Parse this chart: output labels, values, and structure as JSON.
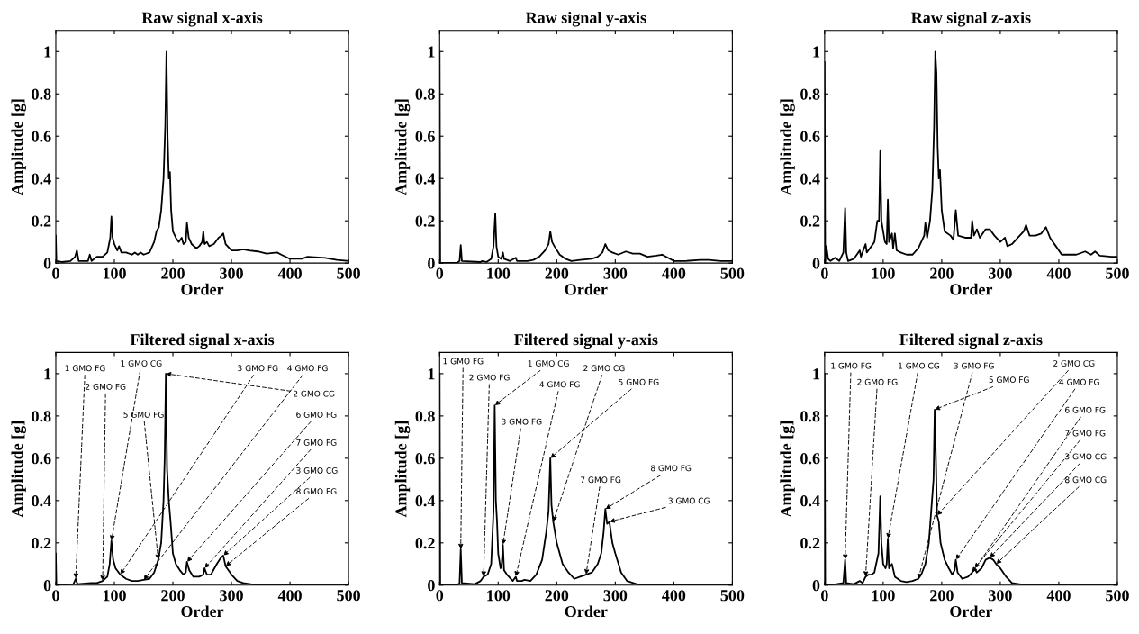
{
  "chart_data": [
    {
      "type": "line",
      "title": "Raw signal x-axis",
      "xlabel": "Order",
      "ylabel": "Amplitude [g]",
      "xlim": [
        0,
        500
      ],
      "ylim": [
        0,
        1.1
      ],
      "xticks": [
        0,
        100,
        200,
        300,
        400,
        500
      ],
      "yticks": [
        0,
        0.2,
        0.4,
        0.6,
        0.8,
        1
      ],
      "grid": false,
      "series": [
        {
          "color": "#000000",
          "x": [
            0,
            1,
            10,
            25,
            33,
            36,
            39,
            55,
            58,
            61,
            70,
            80,
            88,
            93,
            95,
            97,
            100,
            105,
            108,
            112,
            120,
            130,
            135,
            140,
            145,
            150,
            160,
            168,
            172,
            176,
            180,
            184,
            187,
            189,
            191,
            193,
            195,
            197,
            200,
            205,
            210,
            215,
            218,
            222,
            224,
            227,
            232,
            240,
            245,
            250,
            252,
            254,
            258,
            262,
            270,
            278,
            283,
            286,
            290,
            300,
            310,
            320,
            330,
            345,
            360,
            378,
            385,
            400,
            420,
            430,
            460,
            480,
            500
          ],
          "values": [
            0.13,
            0.01,
            0.005,
            0.01,
            0.03,
            0.06,
            0.01,
            0.01,
            0.04,
            0.01,
            0.03,
            0.03,
            0.05,
            0.12,
            0.22,
            0.12,
            0.09,
            0.06,
            0.08,
            0.05,
            0.05,
            0.04,
            0.05,
            0.04,
            0.05,
            0.04,
            0.05,
            0.1,
            0.15,
            0.17,
            0.25,
            0.4,
            0.65,
            1.0,
            0.6,
            0.4,
            0.43,
            0.25,
            0.15,
            0.12,
            0.1,
            0.12,
            0.09,
            0.1,
            0.19,
            0.12,
            0.09,
            0.07,
            0.08,
            0.1,
            0.15,
            0.09,
            0.1,
            0.08,
            0.09,
            0.12,
            0.13,
            0.14,
            0.09,
            0.06,
            0.06,
            0.065,
            0.06,
            0.055,
            0.045,
            0.05,
            0.04,
            0.02,
            0.02,
            0.03,
            0.025,
            0.015,
            0.01
          ]
        }
      ]
    },
    {
      "type": "line",
      "title": "Raw signal y-axis",
      "xlabel": "Order",
      "ylabel": "Amplitude [g]",
      "xlim": [
        0,
        500
      ],
      "ylim": [
        0,
        1.1
      ],
      "xticks": [
        0,
        100,
        200,
        300,
        400,
        500
      ],
      "yticks": [
        0,
        0.2,
        0.4,
        0.6,
        0.8,
        1
      ],
      "grid": false,
      "series": [
        {
          "color": "#000000",
          "x": [
            0,
            1,
            30,
            34,
            36,
            38,
            70,
            72,
            80,
            88,
            92,
            95,
            97,
            100,
            105,
            108,
            110,
            120,
            130,
            132,
            140,
            150,
            160,
            170,
            180,
            186,
            189,
            192,
            196,
            205,
            215,
            225,
            240,
            260,
            270,
            278,
            283,
            288,
            295,
            305,
            318,
            330,
            342,
            355,
            370,
            380,
            390,
            400,
            420,
            445,
            460,
            480,
            500
          ],
          "values": [
            1.0,
            0.0,
            0.002,
            0.01,
            0.085,
            0.01,
            0.005,
            0.01,
            0.005,
            0.02,
            0.08,
            0.235,
            0.08,
            0.03,
            0.02,
            0.05,
            0.02,
            0.01,
            0.025,
            0.01,
            0.01,
            0.01,
            0.015,
            0.03,
            0.06,
            0.09,
            0.15,
            0.1,
            0.08,
            0.04,
            0.02,
            0.01,
            0.015,
            0.02,
            0.03,
            0.05,
            0.09,
            0.06,
            0.05,
            0.04,
            0.055,
            0.045,
            0.045,
            0.03,
            0.035,
            0.04,
            0.025,
            0.01,
            0.01,
            0.015,
            0.015,
            0.01,
            0.01
          ]
        }
      ]
    },
    {
      "type": "line",
      "title": "Raw signal z-axis",
      "xlabel": "Order",
      "ylabel": "Amplitude [g]",
      "xlim": [
        0,
        500
      ],
      "ylim": [
        0,
        1.1
      ],
      "xticks": [
        0,
        100,
        200,
        300,
        400,
        500
      ],
      "yticks": [
        0,
        0.2,
        0.4,
        0.6,
        0.8,
        1
      ],
      "grid": false,
      "series": [
        {
          "color": "#000000",
          "x": [
            0,
            1,
            3,
            6,
            10,
            18,
            25,
            32,
            35,
            37,
            40,
            50,
            60,
            62,
            70,
            72,
            80,
            85,
            90,
            93,
            95,
            97,
            100,
            103,
            106,
            108,
            110,
            115,
            117,
            120,
            123,
            130,
            140,
            150,
            160,
            170,
            172,
            175,
            180,
            184,
            187,
            189,
            191,
            193,
            195,
            197,
            200,
            205,
            215,
            220,
            224,
            228,
            240,
            250,
            252,
            255,
            260,
            265,
            275,
            282,
            290,
            300,
            308,
            312,
            320,
            330,
            340,
            344,
            350,
            360,
            370,
            378,
            385,
            395,
            405,
            430,
            445,
            455,
            462,
            470,
            490,
            500
          ],
          "values": [
            0.95,
            0.0,
            0.08,
            0.02,
            0.01,
            0.025,
            0.01,
            0.05,
            0.26,
            0.05,
            0.01,
            0.02,
            0.06,
            0.03,
            0.09,
            0.05,
            0.08,
            0.1,
            0.2,
            0.2,
            0.53,
            0.2,
            0.15,
            0.1,
            0.09,
            0.3,
            0.1,
            0.14,
            0.07,
            0.14,
            0.06,
            0.05,
            0.04,
            0.04,
            0.07,
            0.13,
            0.19,
            0.12,
            0.2,
            0.35,
            0.65,
            1.0,
            0.9,
            0.55,
            0.4,
            0.44,
            0.25,
            0.15,
            0.13,
            0.11,
            0.25,
            0.13,
            0.12,
            0.12,
            0.2,
            0.13,
            0.16,
            0.12,
            0.16,
            0.16,
            0.13,
            0.1,
            0.12,
            0.08,
            0.09,
            0.12,
            0.15,
            0.18,
            0.13,
            0.13,
            0.14,
            0.17,
            0.12,
            0.08,
            0.04,
            0.04,
            0.055,
            0.04,
            0.055,
            0.035,
            0.03,
            0.03
          ]
        }
      ]
    },
    {
      "type": "line",
      "title": "Filtered signal x-axis",
      "xlabel": "Order",
      "ylabel": "Amplitude [g]",
      "xlim": [
        0,
        500
      ],
      "ylim": [
        0,
        1.1
      ],
      "xticks": [
        0,
        100,
        200,
        300,
        400,
        500
      ],
      "yticks": [
        0,
        0.2,
        0.4,
        0.6,
        0.8,
        1
      ],
      "grid": false,
      "series": [
        {
          "color": "#000000",
          "x": [
            0,
            1,
            30,
            34,
            37,
            60,
            70,
            80,
            88,
            92,
            95,
            98,
            102,
            110,
            120,
            130,
            140,
            150,
            160,
            168,
            175,
            180,
            184,
            186,
            188,
            190,
            193,
            196,
            200,
            205,
            212,
            218,
            222,
            224,
            228,
            235,
            245,
            252,
            254,
            258,
            265,
            275,
            282,
            286,
            290,
            300,
            310,
            320,
            340,
            400,
            500
          ],
          "values": [
            0.15,
            0.0,
            0.005,
            0.03,
            0.005,
            0.01,
            0.01,
            0.02,
            0.04,
            0.1,
            0.21,
            0.12,
            0.08,
            0.05,
            0.03,
            0.02,
            0.02,
            0.025,
            0.03,
            0.06,
            0.12,
            0.2,
            0.4,
            0.6,
            1.0,
            0.55,
            0.4,
            0.3,
            0.15,
            0.1,
            0.07,
            0.05,
            0.06,
            0.11,
            0.07,
            0.04,
            0.04,
            0.05,
            0.08,
            0.05,
            0.05,
            0.1,
            0.13,
            0.14,
            0.09,
            0.05,
            0.02,
            0.01,
            0.002,
            0.0,
            0.0
          ]
        }
      ],
      "annotations": [
        {
          "text": "1 GMO FG",
          "x": 34,
          "y": 0.03
        },
        {
          "text": "2 GMO FG",
          "x": 80,
          "y": 0.02
        },
        {
          "text": "1 GMO CG",
          "x": 95,
          "y": 0.21
        },
        {
          "text": "5 GMO FG",
          "x": 175,
          "y": 0.12
        },
        {
          "text": "3 GMO FG",
          "x": 110,
          "y": 0.05
        },
        {
          "text": "4 GMO FG",
          "x": 150,
          "y": 0.025
        },
        {
          "text": "2 GMO CG",
          "x": 188,
          "y": 1.0
        },
        {
          "text": "6 GMO FG",
          "x": 224,
          "y": 0.11
        },
        {
          "text": "7 GMO FG",
          "x": 254,
          "y": 0.08
        },
        {
          "text": "3 GMO CG",
          "x": 286,
          "y": 0.14
        },
        {
          "text": "8 GMO FG",
          "x": 290,
          "y": 0.09
        }
      ]
    },
    {
      "type": "line",
      "title": "Filtered signal y-axis",
      "xlabel": "Order",
      "ylabel": "Amplitude [g]",
      "xlim": [
        0,
        500
      ],
      "ylim": [
        0,
        1.1
      ],
      "xticks": [
        0,
        100,
        200,
        300,
        400,
        500
      ],
      "yticks": [
        0,
        0.2,
        0.4,
        0.6,
        0.8,
        1
      ],
      "grid": false,
      "series": [
        {
          "color": "#000000",
          "x": [
            0,
            1,
            30,
            34,
            36,
            38,
            60,
            70,
            75,
            82,
            88,
            92,
            94,
            96,
            98,
            100,
            104,
            106,
            108,
            110,
            115,
            125,
            130,
            132,
            140,
            145,
            155,
            165,
            175,
            182,
            186,
            189,
            191,
            194,
            200,
            210,
            220,
            230,
            240,
            250,
            260,
            270,
            276,
            280,
            283,
            286,
            290,
            295,
            300,
            310,
            320,
            340,
            400,
            500
          ],
          "values": [
            1.0,
            0.0,
            0.0,
            0.01,
            0.17,
            0.01,
            0.005,
            0.02,
            0.04,
            0.05,
            0.1,
            0.35,
            0.85,
            0.4,
            0.3,
            0.15,
            0.08,
            0.1,
            0.19,
            0.07,
            0.05,
            0.02,
            0.04,
            0.02,
            0.02,
            0.025,
            0.02,
            0.05,
            0.12,
            0.25,
            0.35,
            0.6,
            0.38,
            0.3,
            0.2,
            0.1,
            0.06,
            0.03,
            0.04,
            0.05,
            0.06,
            0.1,
            0.15,
            0.25,
            0.36,
            0.29,
            0.3,
            0.2,
            0.15,
            0.06,
            0.02,
            0.002,
            0.0,
            0.0
          ]
        }
      ],
      "annotations": [
        {
          "text": "1 GMO FG",
          "x": 36,
          "y": 0.17
        },
        {
          "text": "2 GMO FG",
          "x": 75,
          "y": 0.04
        },
        {
          "text": "1 GMO CG",
          "x": 94,
          "y": 0.85
        },
        {
          "text": "3 GMO FG",
          "x": 108,
          "y": 0.19
        },
        {
          "text": "4 GMO FG",
          "x": 130,
          "y": 0.04
        },
        {
          "text": "2 GMO CG",
          "x": 194,
          "y": 0.3
        },
        {
          "text": "5 GMO FG",
          "x": 189,
          "y": 0.6
        },
        {
          "text": "7 GMO FG",
          "x": 250,
          "y": 0.05
        },
        {
          "text": "8 GMO FG",
          "x": 283,
          "y": 0.36
        },
        {
          "text": "3 GMO CG",
          "x": 290,
          "y": 0.3
        }
      ]
    },
    {
      "type": "line",
      "title": "Filtered signal z-axis",
      "xlabel": "Order",
      "ylabel": "Amplitude [g]",
      "xlim": [
        0,
        500
      ],
      "ylim": [
        0,
        1.1
      ],
      "xticks": [
        0,
        100,
        200,
        300,
        400,
        500
      ],
      "yticks": [
        0,
        0.2,
        0.4,
        0.6,
        0.8,
        1
      ],
      "grid": false,
      "series": [
        {
          "color": "#000000",
          "x": [
            0,
            1,
            20,
            32,
            35,
            37,
            50,
            60,
            65,
            70,
            75,
            80,
            85,
            88,
            92,
            95,
            97,
            100,
            104,
            106,
            108,
            110,
            115,
            120,
            130,
            140,
            150,
            160,
            165,
            172,
            178,
            182,
            186,
            188,
            190,
            192,
            195,
            198,
            205,
            212,
            218,
            222,
            224,
            227,
            235,
            245,
            252,
            256,
            260,
            268,
            275,
            282,
            288,
            293,
            300,
            310,
            320,
            340,
            400,
            500
          ],
          "values": [
            1.0,
            0.0,
            0.005,
            0.01,
            0.12,
            0.01,
            0.005,
            0.02,
            0.01,
            0.04,
            0.05,
            0.05,
            0.06,
            0.1,
            0.15,
            0.42,
            0.2,
            0.1,
            0.08,
            0.1,
            0.22,
            0.08,
            0.1,
            0.04,
            0.02,
            0.015,
            0.02,
            0.03,
            0.05,
            0.1,
            0.2,
            0.35,
            0.5,
            0.83,
            0.6,
            0.33,
            0.3,
            0.2,
            0.12,
            0.08,
            0.05,
            0.07,
            0.12,
            0.06,
            0.03,
            0.04,
            0.06,
            0.08,
            0.06,
            0.08,
            0.12,
            0.13,
            0.12,
            0.1,
            0.08,
            0.04,
            0.01,
            0.002,
            0.0,
            0.0
          ]
        }
      ],
      "annotations": [
        {
          "text": "1 GMO FG",
          "x": 35,
          "y": 0.12
        },
        {
          "text": "2 GMO FG",
          "x": 70,
          "y": 0.04
        },
        {
          "text": "1 GMO CG",
          "x": 108,
          "y": 0.22
        },
        {
          "text": "3 GMO FG",
          "x": 160,
          "y": 0.03
        },
        {
          "text": "5 GMO FG",
          "x": 188,
          "y": 0.83
        },
        {
          "text": "2 GMO CG",
          "x": 192,
          "y": 0.33
        },
        {
          "text": "4 GMO FG",
          "x": 224,
          "y": 0.12
        },
        {
          "text": "6 GMO FG",
          "x": 252,
          "y": 0.06
        },
        {
          "text": "7 GMO FG",
          "x": 256,
          "y": 0.08
        },
        {
          "text": "3 GMO CG",
          "x": 282,
          "y": 0.13
        },
        {
          "text": "8 GMO CG",
          "x": 293,
          "y": 0.1
        }
      ]
    }
  ]
}
